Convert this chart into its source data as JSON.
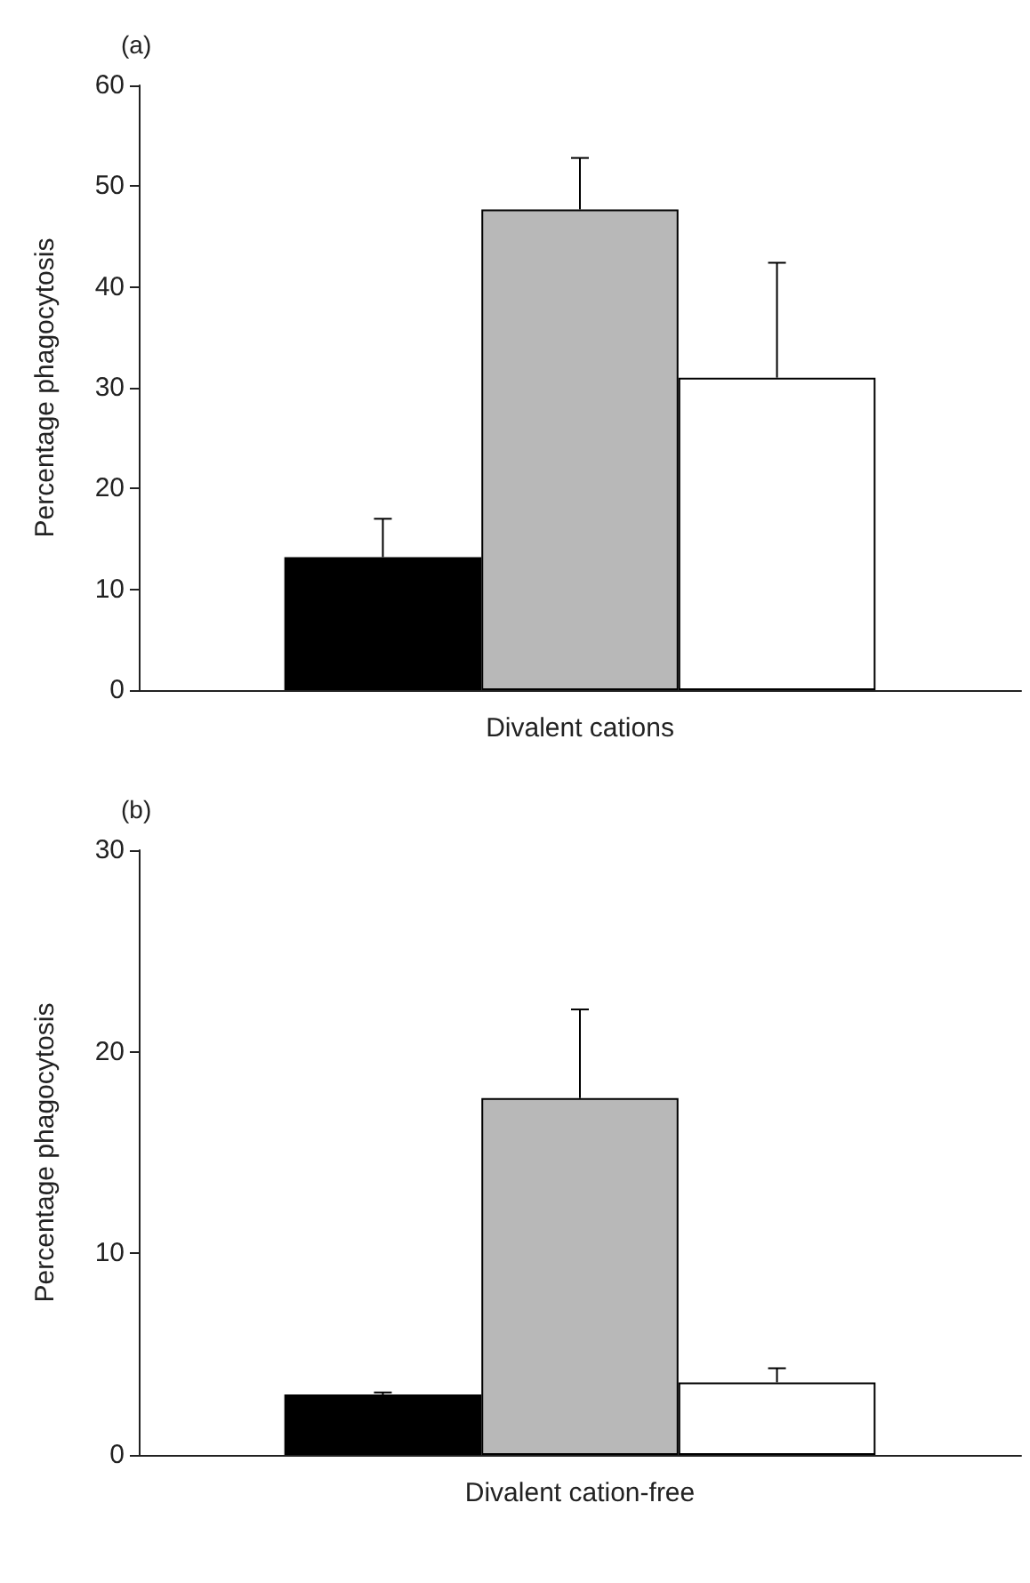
{
  "chart_data": [
    {
      "type": "bar",
      "title": "(a)",
      "ylabel": "Percentage phagocytosis",
      "categories": [
        "Divalent cations"
      ],
      "series": [
        {
          "color": "#000000",
          "values": [
            13.2
          ],
          "errors": [
            3.8
          ]
        },
        {
          "color": "#b8b8b8",
          "values": [
            47.7
          ],
          "errors": [
            5.1
          ]
        },
        {
          "color": "#ffffff",
          "values": [
            31
          ],
          "errors": [
            11.4
          ]
        }
      ],
      "ylim": [
        0,
        60
      ],
      "yticks": [
        0,
        10,
        20,
        30,
        40,
        50,
        60
      ],
      "grid": false
    },
    {
      "type": "bar",
      "title": "(b)",
      "ylabel": "Percentage phagocytosis",
      "categories": [
        "Divalent cation-free"
      ],
      "series": [
        {
          "color": "#000000",
          "values": [
            3.0
          ],
          "errors": [
            0.1
          ]
        },
        {
          "color": "#b8b8b8",
          "values": [
            17.7
          ],
          "errors": [
            4.4
          ]
        },
        {
          "color": "#ffffff",
          "values": [
            3.6
          ],
          "errors": [
            0.7
          ]
        }
      ],
      "ylim": [
        0,
        30
      ],
      "yticks": [
        0,
        10,
        20,
        30
      ],
      "grid": false
    }
  ]
}
